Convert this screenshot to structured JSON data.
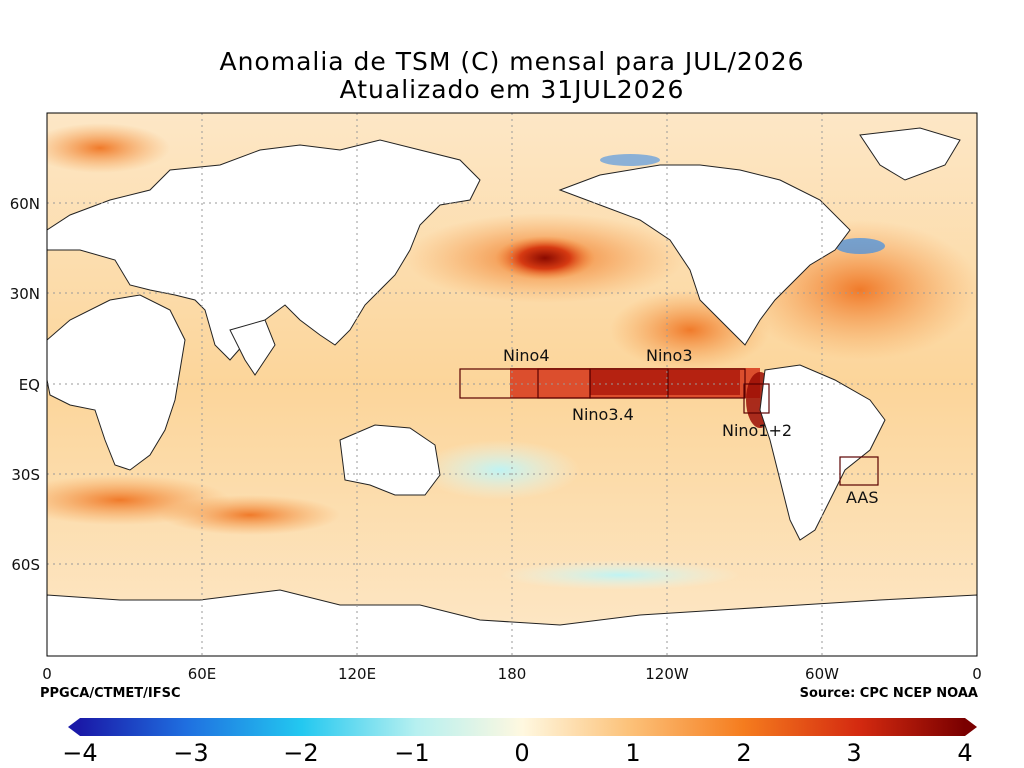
{
  "map": {
    "title_line1": "Anomalia de TSM (C) mensal para JUL/2026",
    "title_line2": "Atualizado em 31JUL2026",
    "credit_left": "PPGCA/CTMET/IFSC",
    "credit_right": "Source: CPC NCEP NOAA",
    "x_ticks": [
      "0",
      "60E",
      "120E",
      "180",
      "120W",
      "60W",
      "0"
    ],
    "y_ticks": [
      "60N",
      "30N",
      "EQ",
      "30S",
      "60S"
    ],
    "regions": [
      {
        "label": "Nino4"
      },
      {
        "label": "Nino3.4"
      },
      {
        "label": "Nino3"
      },
      {
        "label": "Nino1+2"
      },
      {
        "label": "AAS"
      }
    ],
    "colorbar": {
      "tick_labels": [
        "−4",
        "−3",
        "−2",
        "−1",
        "0",
        "1",
        "2",
        "3",
        "4"
      ]
    }
  }
}
